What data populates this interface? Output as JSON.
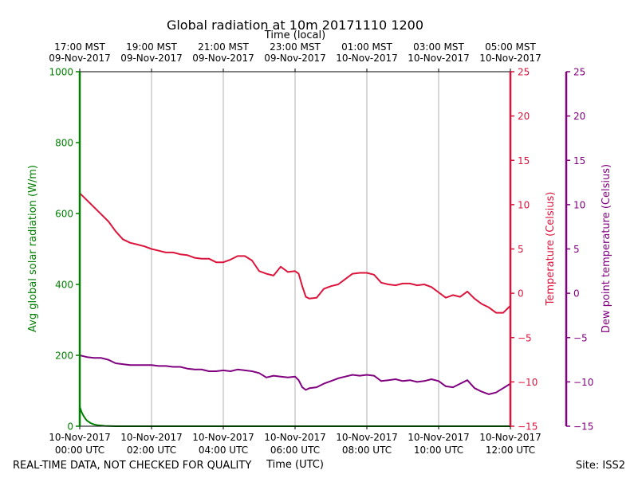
{
  "colors": {
    "radiation": "#008000",
    "temperature": "#DC143C",
    "dewpoint": "#800080",
    "grid": "#b0b0b0",
    "text": "#000000"
  },
  "footer": {
    "disclaimer": "REAL-TIME DATA, NOT CHECKED FOR QUALITY",
    "site": "Site: ISS2"
  },
  "chart_data": {
    "type": "line",
    "title": "Global radiation at 10m 20171110 1200",
    "xlabel": "Time (UTC)",
    "xlabel_top": "Time (local)",
    "x_unit": "hours since 10-Nov-2017 00:00 UTC",
    "xlim": [
      0,
      12
    ],
    "x_ticks": [
      0,
      2,
      4,
      6,
      8,
      10,
      12
    ],
    "x_tick_labels_bottom": [
      [
        "10-Nov-2017",
        "00:00 UTC"
      ],
      [
        "10-Nov-2017",
        "02:00 UTC"
      ],
      [
        "10-Nov-2017",
        "04:00 UTC"
      ],
      [
        "10-Nov-2017",
        "06:00 UTC"
      ],
      [
        "10-Nov-2017",
        "08:00 UTC"
      ],
      [
        "10-Nov-2017",
        "10:00 UTC"
      ],
      [
        "10-Nov-2017",
        "12:00 UTC"
      ]
    ],
    "x_tick_labels_top": [
      [
        "17:00 MST",
        "09-Nov-2017"
      ],
      [
        "19:00 MST",
        "09-Nov-2017"
      ],
      [
        "21:00 MST",
        "09-Nov-2017"
      ],
      [
        "23:00 MST",
        "09-Nov-2017"
      ],
      [
        "01:00 MST",
        "10-Nov-2017"
      ],
      [
        "03:00 MST",
        "10-Nov-2017"
      ],
      [
        "05:00 MST",
        "10-Nov-2017"
      ]
    ],
    "grid": "vertical",
    "axes": [
      {
        "id": "radiation",
        "side": "left",
        "label": "Avg global solar radiation (W/m)",
        "ylim": [
          0,
          1000
        ],
        "ticks": [
          0,
          200,
          400,
          600,
          800,
          1000
        ],
        "tick_labels": [
          "0",
          "200",
          "400",
          "600",
          "800",
          "1000"
        ]
      },
      {
        "id": "temperature",
        "side": "right",
        "label": "Temperature (Celsius)",
        "ylim": [
          -15,
          25
        ],
        "ticks": [
          -15,
          -10,
          -5,
          0,
          5,
          10,
          15,
          20,
          25
        ],
        "tick_labels": [
          "−15",
          "−10",
          "−5",
          "0",
          "5",
          "10",
          "15",
          "20",
          "25"
        ]
      },
      {
        "id": "dewpoint",
        "side": "right-outer",
        "label": "Dew point temperature (Celsius)",
        "ylim": [
          -15,
          25
        ],
        "ticks": [
          -15,
          -10,
          -5,
          0,
          5,
          10,
          15,
          20,
          25
        ],
        "tick_labels": [
          "−15",
          "−10",
          "−5",
          "0",
          "5",
          "10",
          "15",
          "20",
          "25"
        ]
      }
    ],
    "series": [
      {
        "name": "Avg global solar radiation",
        "axis": "radiation",
        "x": [
          0,
          0.05,
          0.1,
          0.15,
          0.2,
          0.3,
          0.4,
          0.5,
          0.7,
          1.0,
          2.0,
          4.0,
          6.0,
          8.0,
          10.0,
          12.0
        ],
        "y": [
          55,
          40,
          30,
          22,
          16,
          9,
          5,
          3,
          1,
          0,
          0,
          0,
          0,
          0,
          0,
          0
        ]
      },
      {
        "name": "Temperature",
        "axis": "temperature",
        "x": [
          0,
          0.2,
          0.4,
          0.6,
          0.8,
          1.0,
          1.2,
          1.4,
          1.6,
          1.8,
          2.0,
          2.2,
          2.4,
          2.6,
          2.8,
          3.0,
          3.2,
          3.4,
          3.6,
          3.8,
          4.0,
          4.2,
          4.4,
          4.6,
          4.8,
          5.0,
          5.2,
          5.4,
          5.6,
          5.8,
          6.0,
          6.1,
          6.2,
          6.3,
          6.4,
          6.6,
          6.8,
          7.0,
          7.2,
          7.4,
          7.6,
          7.8,
          8.0,
          8.2,
          8.4,
          8.6,
          8.8,
          9.0,
          9.2,
          9.4,
          9.6,
          9.8,
          10.0,
          10.2,
          10.4,
          10.6,
          10.8,
          11.0,
          11.2,
          11.4,
          11.6,
          11.8,
          12.0
        ],
        "y": [
          11.3,
          10.5,
          9.7,
          8.9,
          8.1,
          7.0,
          6.1,
          5.7,
          5.5,
          5.3,
          5.0,
          4.8,
          4.6,
          4.6,
          4.4,
          4.3,
          4.0,
          3.9,
          3.9,
          3.5,
          3.5,
          3.8,
          4.2,
          4.2,
          3.7,
          2.5,
          2.2,
          2.0,
          3.0,
          2.4,
          2.5,
          2.2,
          0.8,
          -0.4,
          -0.6,
          -0.5,
          0.5,
          0.8,
          1.0,
          1.6,
          2.2,
          2.3,
          2.3,
          2.1,
          1.2,
          1.0,
          0.9,
          1.1,
          1.1,
          0.9,
          1.0,
          0.7,
          0.1,
          -0.5,
          -0.2,
          -0.4,
          0.2,
          -0.6,
          -1.2,
          -1.6,
          -2.2,
          -2.2,
          -1.4
        ]
      },
      {
        "name": "Dew point temperature",
        "axis": "dewpoint",
        "x": [
          0,
          0.2,
          0.4,
          0.6,
          0.8,
          1.0,
          1.2,
          1.4,
          1.6,
          1.8,
          2.0,
          2.2,
          2.4,
          2.6,
          2.8,
          3.0,
          3.2,
          3.4,
          3.6,
          3.8,
          4.0,
          4.2,
          4.4,
          4.6,
          4.8,
          5.0,
          5.2,
          5.4,
          5.6,
          5.8,
          6.0,
          6.1,
          6.2,
          6.3,
          6.4,
          6.6,
          6.8,
          7.0,
          7.2,
          7.4,
          7.6,
          7.8,
          8.0,
          8.2,
          8.4,
          8.6,
          8.8,
          9.0,
          9.2,
          9.4,
          9.6,
          9.8,
          10.0,
          10.2,
          10.4,
          10.6,
          10.8,
          11.0,
          11.2,
          11.4,
          11.6,
          11.8,
          12.0
        ],
        "y": [
          -7.0,
          -7.2,
          -7.3,
          -7.3,
          -7.5,
          -7.9,
          -8.0,
          -8.1,
          -8.1,
          -8.1,
          -8.1,
          -8.2,
          -8.2,
          -8.3,
          -8.3,
          -8.5,
          -8.6,
          -8.6,
          -8.8,
          -8.8,
          -8.7,
          -8.8,
          -8.6,
          -8.7,
          -8.8,
          -9.0,
          -9.5,
          -9.3,
          -9.4,
          -9.5,
          -9.4,
          -9.8,
          -10.6,
          -10.9,
          -10.7,
          -10.6,
          -10.2,
          -9.9,
          -9.6,
          -9.4,
          -9.2,
          -9.3,
          -9.2,
          -9.3,
          -9.9,
          -9.8,
          -9.7,
          -9.9,
          -9.8,
          -10.0,
          -9.9,
          -9.7,
          -9.9,
          -10.5,
          -10.6,
          -10.2,
          -9.8,
          -10.7,
          -11.1,
          -11.4,
          -11.2,
          -10.7,
          -10.2
        ]
      }
    ]
  }
}
